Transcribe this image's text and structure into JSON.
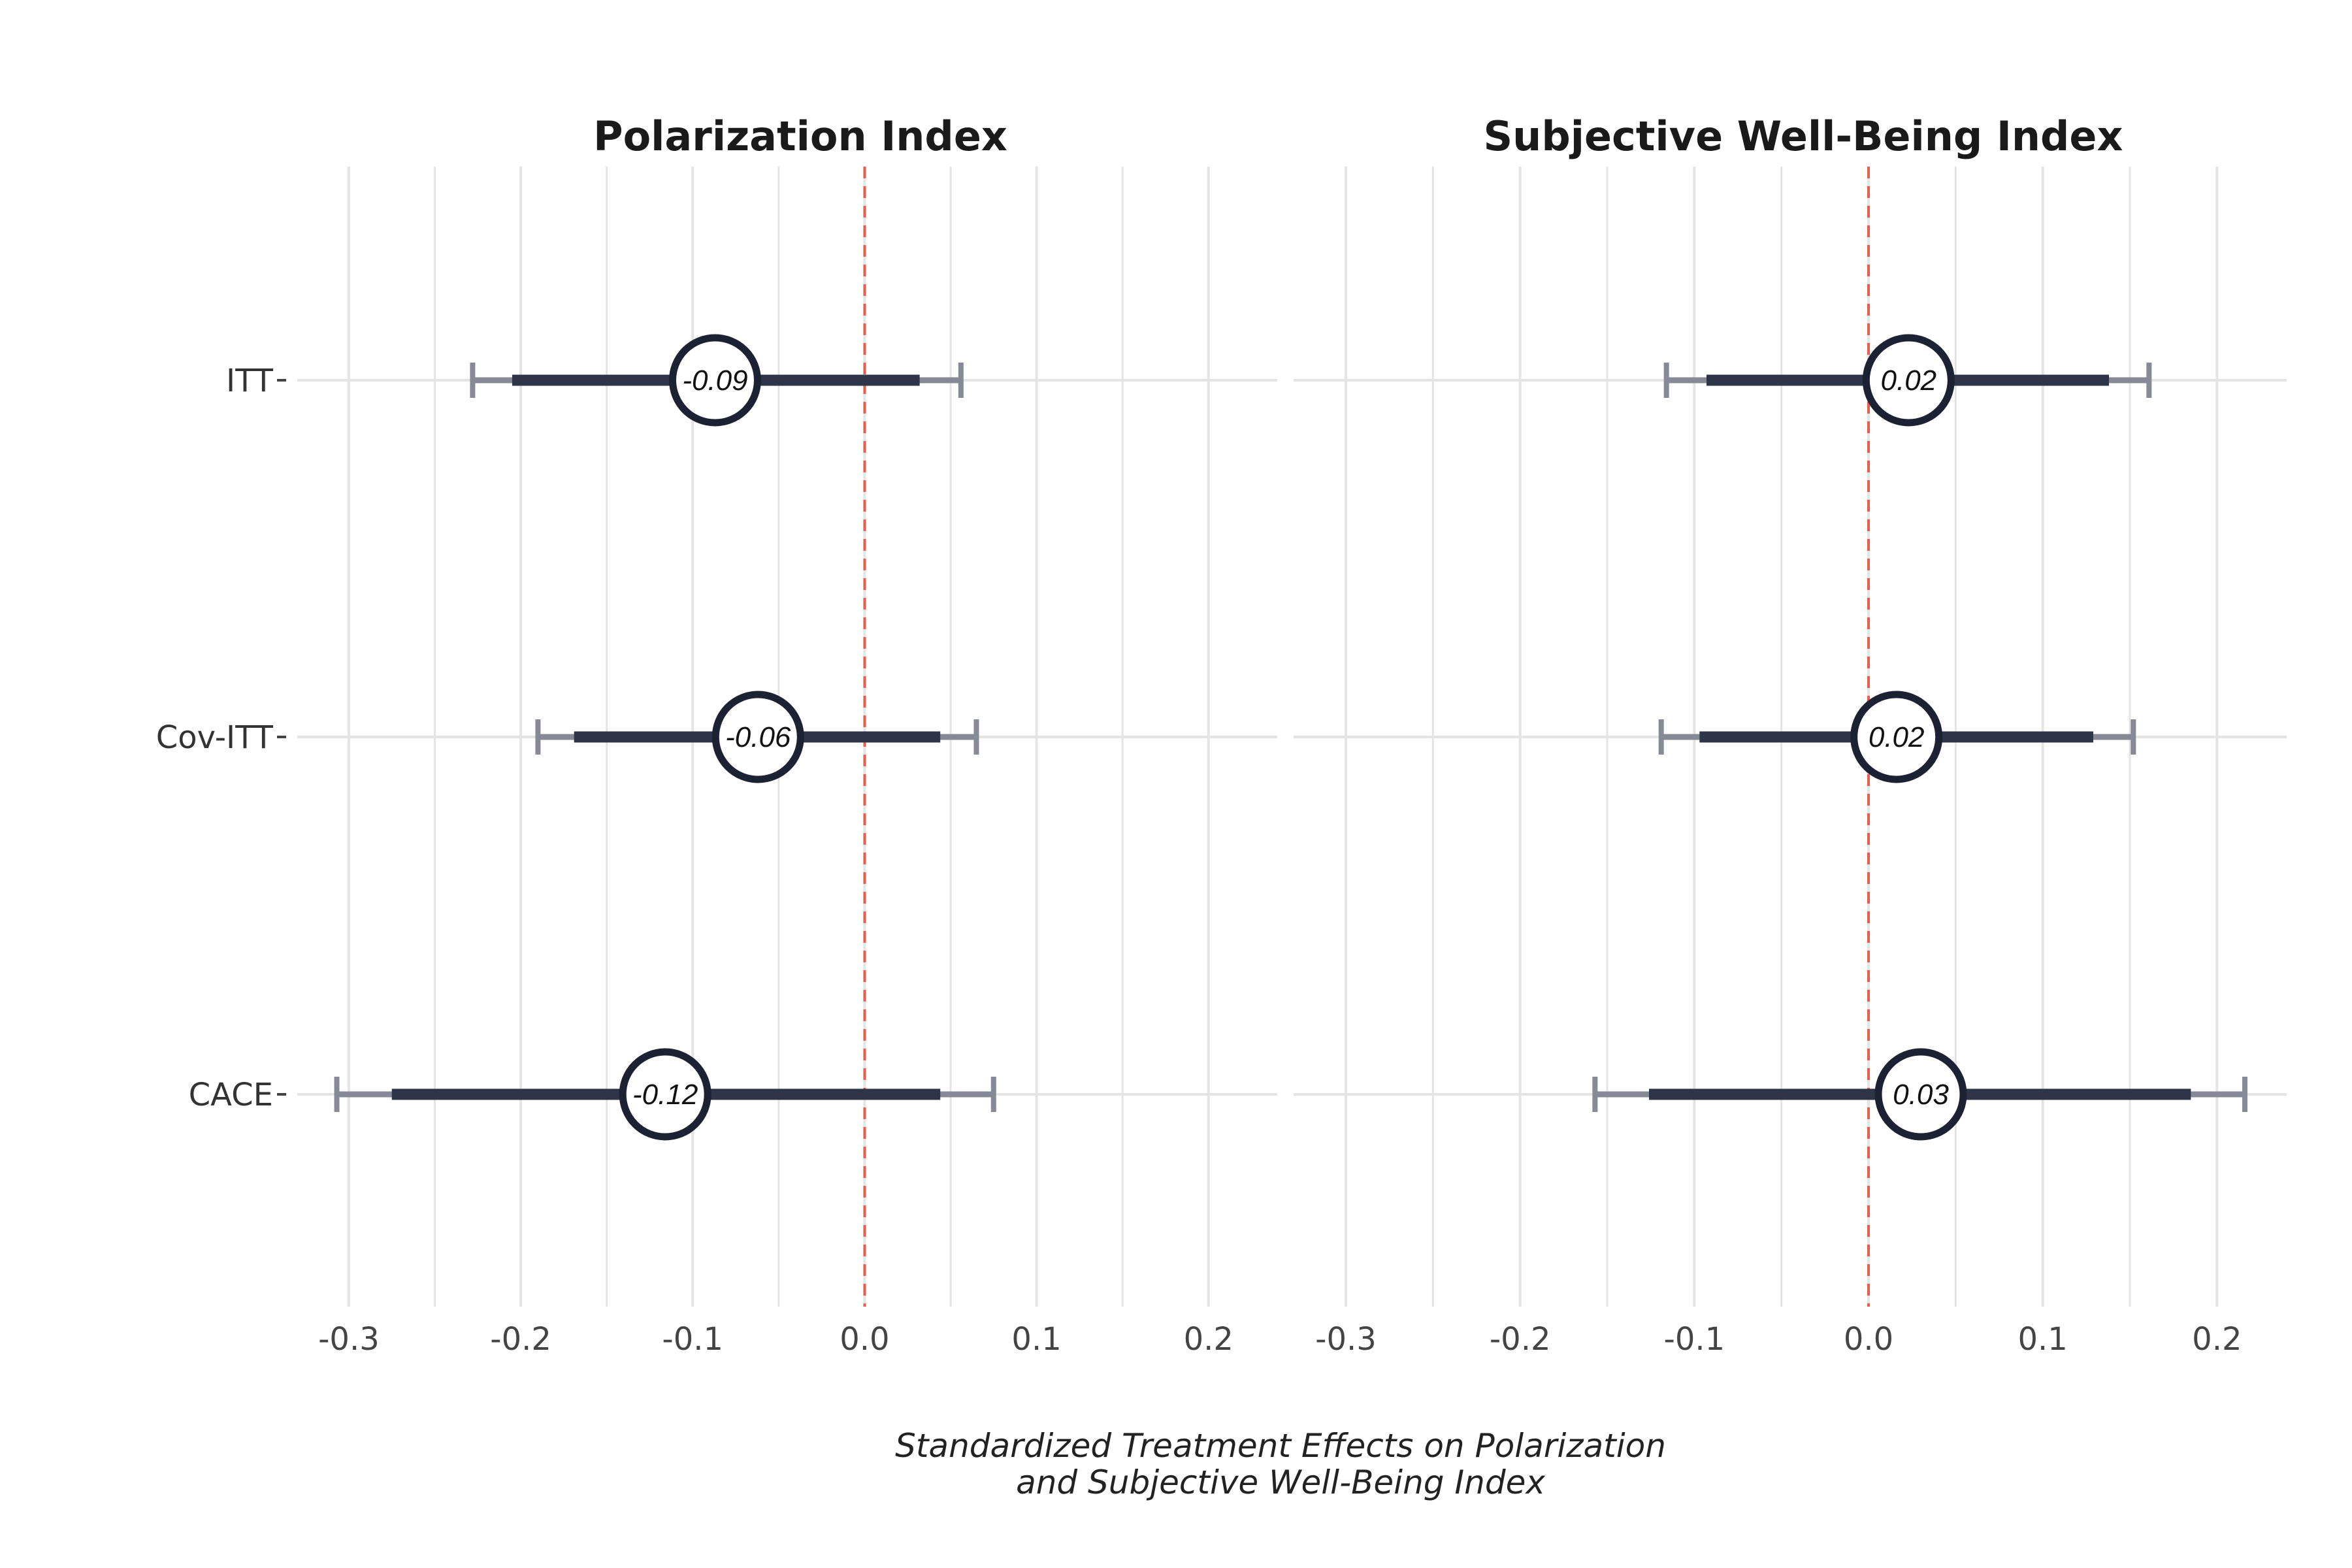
{
  "chart_data": {
    "type": "forest",
    "xlabel_lines": [
      "Standardized Treatment Effects on Polarization",
      "and Subjective Well-Being Index"
    ],
    "xlim": [
      -0.33,
      0.24
    ],
    "x_ticks": [
      -0.3,
      -0.2,
      -0.1,
      0.0,
      0.1,
      0.2
    ],
    "x_tick_labels": [
      "-0.3",
      "-0.2",
      "-0.1",
      "0.0",
      "0.1",
      "0.2"
    ],
    "reference_line": 0,
    "categories": [
      "ITT",
      "Cov-ITT",
      "CACE"
    ],
    "grid": true,
    "panels": [
      {
        "title": "Polarization Index",
        "estimates": [
          {
            "category": "ITT",
            "estimate": -0.087,
            "label": "-0.09",
            "ci90": [
              -0.205,
              0.032
            ],
            "ci95": [
              -0.228,
              0.056
            ]
          },
          {
            "category": "Cov-ITT",
            "estimate": -0.062,
            "label": "-0.06",
            "ci90": [
              -0.169,
              0.044
            ],
            "ci95": [
              -0.19,
              0.065
            ]
          },
          {
            "category": "CACE",
            "estimate": -0.116,
            "label": "-0.12",
            "ci90": [
              -0.275,
              0.044
            ],
            "ci95": [
              -0.307,
              0.075
            ]
          }
        ]
      },
      {
        "title": "Subjective Well-Being Index",
        "estimates": [
          {
            "category": "ITT",
            "estimate": 0.023,
            "label": "0.02",
            "ci90": [
              -0.093,
              0.138
            ],
            "ci95": [
              -0.116,
              0.161
            ]
          },
          {
            "category": "Cov-ITT",
            "estimate": 0.016,
            "label": "0.02",
            "ci90": [
              -0.097,
              0.129
            ],
            "ci95": [
              -0.119,
              0.152
            ]
          },
          {
            "category": "CACE",
            "estimate": 0.03,
            "label": "0.03",
            "ci90": [
              -0.126,
              0.185
            ],
            "ci95": [
              -0.157,
              0.216
            ]
          }
        ]
      }
    ]
  },
  "colors": {
    "grid": "#e4e4e4",
    "inner_interval": "#2e3548",
    "outer_interval": "#858a96",
    "marker_stroke": "#1c2133",
    "marker_fill": "#ffffff",
    "reference_line": "#ef5b4b"
  }
}
